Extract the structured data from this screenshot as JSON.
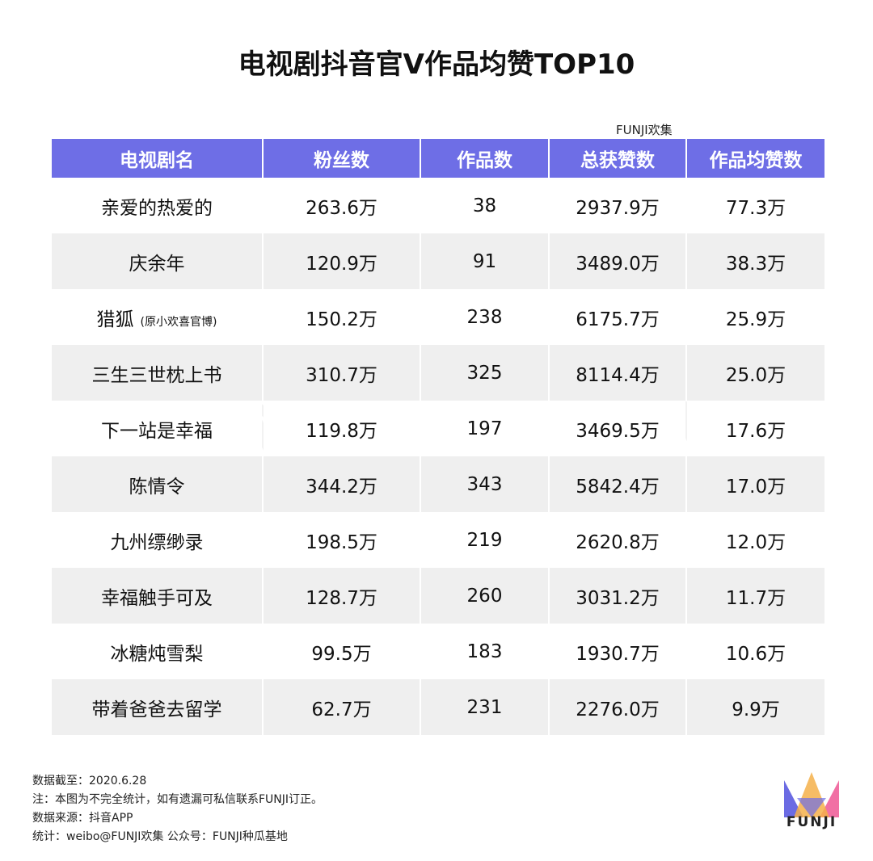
{
  "title": "电视剧抖音官V作品均赞TOP10",
  "source_tag": "FUNJI欢集",
  "chart_data": {
    "type": "table",
    "title": "电视剧抖音官V作品均赞TOP10",
    "columns": [
      "电视剧名",
      "粉丝数",
      "作品数",
      "总获赞数",
      "作品均赞数"
    ],
    "rows": [
      {
        "name": "亲爱的热爱的",
        "note": "",
        "fans": "263.6万",
        "works": "38",
        "likes": "2937.9万",
        "avg": "77.3万"
      },
      {
        "name": "庆余年",
        "note": "",
        "fans": "120.9万",
        "works": "91",
        "likes": "3489.0万",
        "avg": "38.3万"
      },
      {
        "name": "猎狐",
        "note": "(原小欢喜官博)",
        "fans": "150.2万",
        "works": "238",
        "likes": "6175.7万",
        "avg": "25.9万"
      },
      {
        "name": "三生三世枕上书",
        "note": "",
        "fans": "310.7万",
        "works": "325",
        "likes": "8114.4万",
        "avg": "25.0万"
      },
      {
        "name": "下一站是幸福",
        "note": "",
        "fans": "119.8万",
        "works": "197",
        "likes": "3469.5万",
        "avg": "17.6万"
      },
      {
        "name": "陈情令",
        "note": "",
        "fans": "344.2万",
        "works": "343",
        "likes": "5842.4万",
        "avg": "17.0万"
      },
      {
        "name": "九州缥缈录",
        "note": "",
        "fans": "198.5万",
        "works": "219",
        "likes": "2620.8万",
        "avg": "12.0万"
      },
      {
        "name": "幸福触手可及",
        "note": "",
        "fans": "128.7万",
        "works": "260",
        "likes": "3031.2万",
        "avg": "11.7万"
      },
      {
        "name": "冰糖炖雪梨",
        "note": "",
        "fans": "99.5万",
        "works": "183",
        "likes": "1930.7万",
        "avg": "10.6万"
      },
      {
        "name": "带着爸爸去留学",
        "note": "",
        "fans": "62.7万",
        "works": "231",
        "likes": "2276.0万",
        "avg": "9.9万"
      }
    ]
  },
  "footer": {
    "line1": "数据截至：2020.6.28",
    "line2": "注：本图为不完全统计，如有遗漏可私信联系FUNJI订正。",
    "line3": "数据来源：抖音APP",
    "line4": "统计：weibo@FUNJI欢集 公众号：FUNJI种瓜基地"
  },
  "logo": {
    "text": "FUNJI",
    "colors": [
      "#5b5be0",
      "#f0609a",
      "#f5b04a"
    ]
  }
}
